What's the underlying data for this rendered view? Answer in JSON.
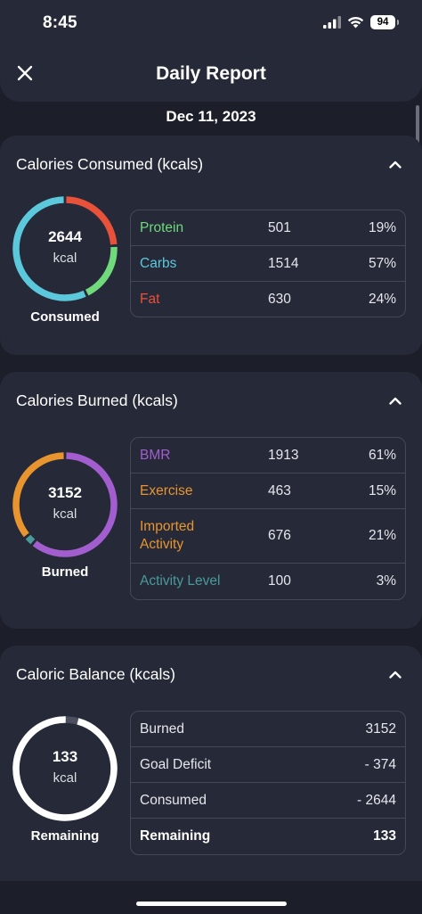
{
  "status": {
    "time": "8:45",
    "battery": "94"
  },
  "header": {
    "title": "Daily Report"
  },
  "date": "Dec 11, 2023",
  "colors": {
    "protein": "#6fd97c",
    "carbs": "#5cc8db",
    "fat": "#e8513a",
    "bmr": "#a25ecf",
    "exercise": "#e8952f",
    "imported": "#e8952f",
    "activity_level": "#4a9a9a",
    "remaining_ring": "#ffffff",
    "ring_track": "#4c4f5e"
  },
  "consumed": {
    "title": "Calories Consumed (kcals)",
    "value": "2644",
    "unit": "kcal",
    "caption": "Consumed",
    "rows": [
      {
        "label": "Protein",
        "value": "501",
        "pct": "19%",
        "fraction": 0.19,
        "color_key": "protein"
      },
      {
        "label": "Carbs",
        "value": "1514",
        "pct": "57%",
        "fraction": 0.57,
        "color_key": "carbs"
      },
      {
        "label": "Fat",
        "value": "630",
        "pct": "24%",
        "fraction": 0.24,
        "color_key": "fat"
      }
    ]
  },
  "burned": {
    "title": "Calories Burned (kcals)",
    "value": "3152",
    "unit": "kcal",
    "caption": "Burned",
    "rows": [
      {
        "label": "BMR",
        "value": "1913",
        "pct": "61%",
        "fraction": 0.61,
        "color_key": "bmr"
      },
      {
        "label": "Exercise",
        "value": "463",
        "pct": "15%",
        "fraction": 0.15,
        "color_key": "exercise"
      },
      {
        "label": "Imported Activity",
        "label_l1": "Imported",
        "label_l2": "Activity",
        "value": "676",
        "pct": "21%",
        "fraction": 0.21,
        "color_key": "imported"
      },
      {
        "label": "Activity Level",
        "value": "100",
        "pct": "3%",
        "fraction": 0.03,
        "color_key": "activity_level"
      }
    ]
  },
  "balance": {
    "title": "Caloric Balance (kcals)",
    "value": "133",
    "unit": "kcal",
    "caption": "Remaining",
    "remaining_fraction": 0.96,
    "rows": [
      {
        "label": "Burned",
        "value": "3152"
      },
      {
        "label": "Goal Deficit",
        "value": "- 374"
      },
      {
        "label": "Consumed",
        "value": "- 2644"
      },
      {
        "label": "Remaining",
        "value": "133"
      }
    ]
  }
}
